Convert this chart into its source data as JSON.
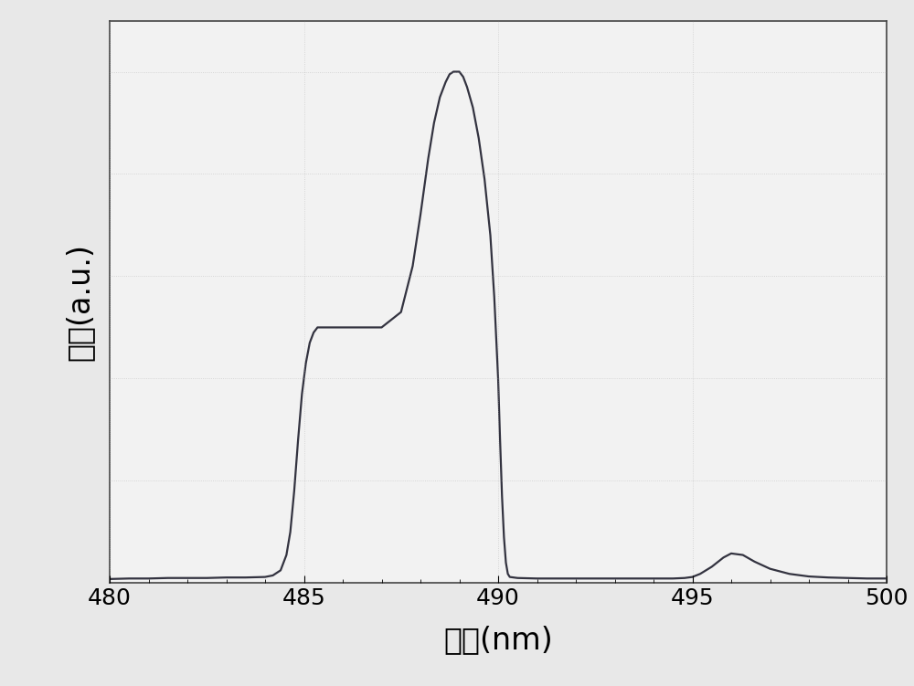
{
  "x": [
    480.0,
    480.5,
    481.0,
    481.5,
    482.0,
    482.5,
    483.0,
    483.5,
    484.0,
    484.2,
    484.4,
    484.55,
    484.65,
    484.75,
    484.85,
    484.95,
    485.05,
    485.15,
    485.25,
    485.35,
    485.5,
    485.7,
    486.0,
    486.5,
    487.0,
    487.5,
    487.8,
    488.0,
    488.2,
    488.35,
    488.5,
    488.65,
    488.75,
    488.85,
    489.0,
    489.1,
    489.2,
    489.35,
    489.5,
    489.65,
    489.8,
    489.9,
    490.0,
    490.05,
    490.1,
    490.15,
    490.2,
    490.25,
    490.3,
    490.5,
    491.0,
    491.5,
    492.0,
    492.5,
    493.0,
    493.5,
    494.0,
    494.5,
    494.8,
    495.0,
    495.2,
    495.5,
    495.8,
    496.0,
    496.3,
    496.6,
    497.0,
    497.5,
    498.0,
    498.5,
    499.0,
    499.5,
    500.0
  ],
  "y": [
    0.008,
    0.009,
    0.009,
    0.01,
    0.01,
    0.01,
    0.011,
    0.011,
    0.012,
    0.015,
    0.025,
    0.055,
    0.1,
    0.18,
    0.28,
    0.37,
    0.43,
    0.47,
    0.49,
    0.5,
    0.5,
    0.5,
    0.5,
    0.5,
    0.5,
    0.53,
    0.62,
    0.72,
    0.83,
    0.9,
    0.95,
    0.98,
    0.995,
    1.0,
    1.0,
    0.99,
    0.97,
    0.93,
    0.87,
    0.79,
    0.68,
    0.56,
    0.4,
    0.28,
    0.17,
    0.09,
    0.04,
    0.018,
    0.012,
    0.01,
    0.009,
    0.009,
    0.009,
    0.009,
    0.009,
    0.009,
    0.009,
    0.009,
    0.01,
    0.012,
    0.018,
    0.032,
    0.05,
    0.058,
    0.055,
    0.042,
    0.028,
    0.018,
    0.013,
    0.011,
    0.01,
    0.009,
    0.009
  ],
  "xlim": [
    480,
    500
  ],
  "xticks": [
    480,
    485,
    490,
    495,
    500
  ],
  "xlabel": "波长(nm)",
  "ylabel": "强度(a.u.)",
  "line_color": "#333340",
  "line_width": 1.6,
  "bg_color": "#e8e8e8",
  "plot_bg_color": "#f2f2f2",
  "font_size_label": 24,
  "font_size_tick": 18
}
